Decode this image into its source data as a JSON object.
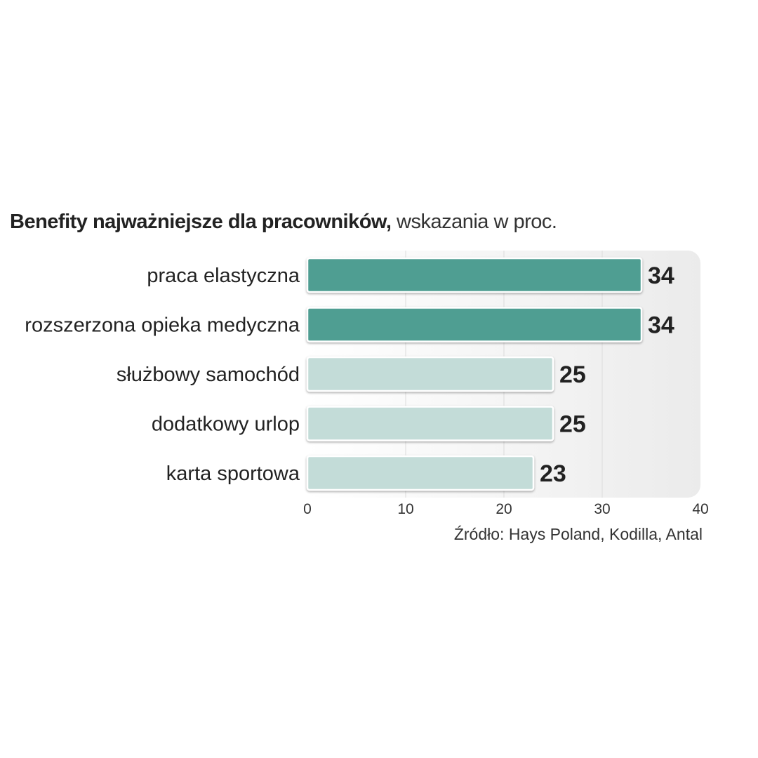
{
  "chart_data": {
    "type": "bar",
    "orientation": "horizontal",
    "title_bold": "Benefity najważniejsze dla pracowników,",
    "title_light": "wskazania w proc.",
    "categories": [
      "praca elastyczna",
      "rozszerzona opieka medyczna",
      "służbowy samochód",
      "dodatkowy urlop",
      "karta sportowa"
    ],
    "values": [
      34,
      34,
      25,
      25,
      23
    ],
    "highlighted": [
      true,
      true,
      false,
      false,
      false
    ],
    "xlim": [
      0,
      40
    ],
    "xticks": [
      "0",
      "10",
      "20",
      "30",
      "40"
    ],
    "grid": true,
    "source": "Źródło: Hays Poland, Kodilla, Antal",
    "colors": {
      "highlight": "#4f9e92",
      "normal": "#c3dcd8",
      "panel": "#f1f1f1"
    }
  }
}
